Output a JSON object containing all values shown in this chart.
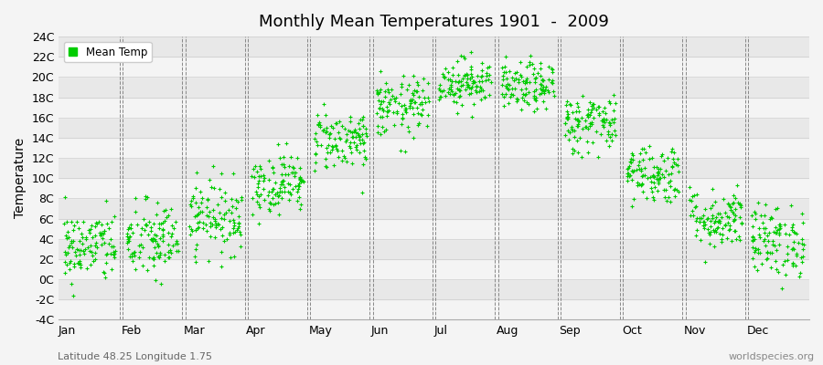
{
  "title": "Monthly Mean Temperatures 1901  -  2009",
  "ylabel": "Temperature",
  "xlabel_labels": [
    "Jan",
    "Feb",
    "Mar",
    "Apr",
    "May",
    "Jun",
    "Jul",
    "Aug",
    "Sep",
    "Oct",
    "Nov",
    "Dec"
  ],
  "footer_left": "Latitude 48.25 Longitude 1.75",
  "footer_right": "worldspecies.org",
  "legend_label": "Mean Temp",
  "dot_color": "#00cc00",
  "bg_color": "#f4f4f4",
  "band_dark": "#e8e8e8",
  "band_light": "#f4f4f4",
  "vline_color": "#888888",
  "ylim": [
    -4,
    24
  ],
  "yticks": [
    -4,
    -2,
    0,
    2,
    4,
    6,
    8,
    10,
    12,
    14,
    16,
    18,
    20,
    22,
    24
  ],
  "ytick_labels": [
    "-4C",
    "-2C",
    "0C",
    "2C",
    "4C",
    "6C",
    "8C",
    "10C",
    "12C",
    "14C",
    "16C",
    "18C",
    "20C",
    "22C",
    "24C"
  ],
  "mean_temps": [
    3.2,
    3.8,
    6.2,
    9.5,
    13.8,
    17.0,
    19.5,
    19.0,
    15.5,
    10.5,
    6.0,
    3.8
  ],
  "std_temps": [
    1.8,
    2.0,
    1.8,
    1.5,
    1.5,
    1.5,
    1.2,
    1.2,
    1.5,
    1.5,
    1.5,
    1.8
  ],
  "n_years": 109,
  "seed": 42
}
